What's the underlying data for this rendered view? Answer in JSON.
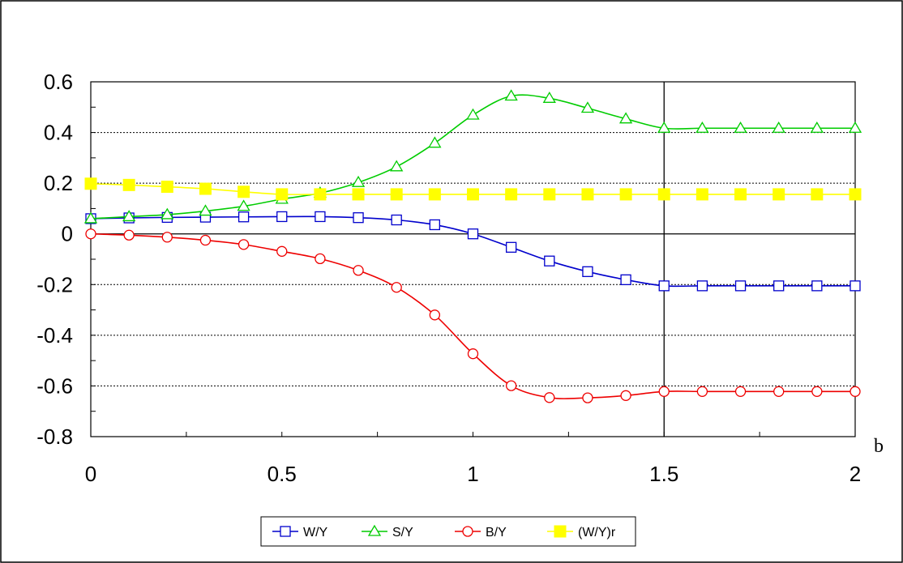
{
  "chart_data": {
    "type": "line",
    "title": "",
    "xlabel": "b",
    "ylabel": "",
    "xlim": [
      0,
      2
    ],
    "ylim": [
      -0.8,
      0.6
    ],
    "x_ticks": [
      0,
      0.5,
      1,
      1.5,
      2
    ],
    "x_tick_labels": [
      "0",
      "0.5",
      "1",
      "1.5",
      "2"
    ],
    "y_ticks": [
      -0.8,
      -0.6,
      -0.4,
      -0.2,
      0,
      0.2,
      0.4,
      0.6
    ],
    "y_tick_labels": [
      "-0.8",
      "-0.6",
      "-0.4",
      "-0.2",
      "0",
      "0.2",
      "0.4",
      "0.6"
    ],
    "grid": "horizontal dotted",
    "reference_lines": {
      "y": 0,
      "x": 1.5
    },
    "legend_position": "bottom-center",
    "x": [
      0,
      0.1,
      0.2,
      0.3,
      0.4,
      0.5,
      0.6,
      0.7,
      0.8,
      0.9,
      1.0,
      1.1,
      1.2,
      1.3,
      1.4,
      1.5,
      1.6,
      1.7,
      1.8,
      1.9,
      2.0
    ],
    "series": [
      {
        "name": "W/Y",
        "color": "#0000cc",
        "marker": "square-open",
        "values": [
          0.06,
          0.063,
          0.065,
          0.066,
          0.067,
          0.068,
          0.068,
          0.064,
          0.055,
          0.036,
          0.0,
          -0.053,
          -0.107,
          -0.149,
          -0.181,
          -0.205,
          -0.205,
          -0.205,
          -0.205,
          -0.205,
          -0.205
        ]
      },
      {
        "name": "S/Y",
        "color": "#00cc00",
        "marker": "triangle-open",
        "values": [
          0.06,
          0.068,
          0.076,
          0.09,
          0.109,
          0.137,
          0.161,
          0.203,
          0.265,
          0.358,
          0.469,
          0.544,
          0.535,
          0.496,
          0.454,
          0.417,
          0.417,
          0.417,
          0.417,
          0.417,
          0.417
        ]
      },
      {
        "name": "B/Y",
        "color": "#ee0000",
        "marker": "circle-open",
        "values": [
          0.0,
          -0.005,
          -0.013,
          -0.025,
          -0.042,
          -0.069,
          -0.098,
          -0.144,
          -0.211,
          -0.32,
          -0.473,
          -0.599,
          -0.646,
          -0.647,
          -0.638,
          -0.622,
          -0.622,
          -0.622,
          -0.622,
          -0.622,
          -0.622
        ]
      },
      {
        "name": "(W/Y)r",
        "color": "#ffff00",
        "marker": "square-filled",
        "values": [
          0.198,
          0.193,
          0.186,
          0.178,
          0.166,
          0.156,
          0.156,
          0.156,
          0.156,
          0.156,
          0.156,
          0.156,
          0.156,
          0.156,
          0.156,
          0.156,
          0.156,
          0.156,
          0.156,
          0.156,
          0.156
        ]
      }
    ]
  }
}
